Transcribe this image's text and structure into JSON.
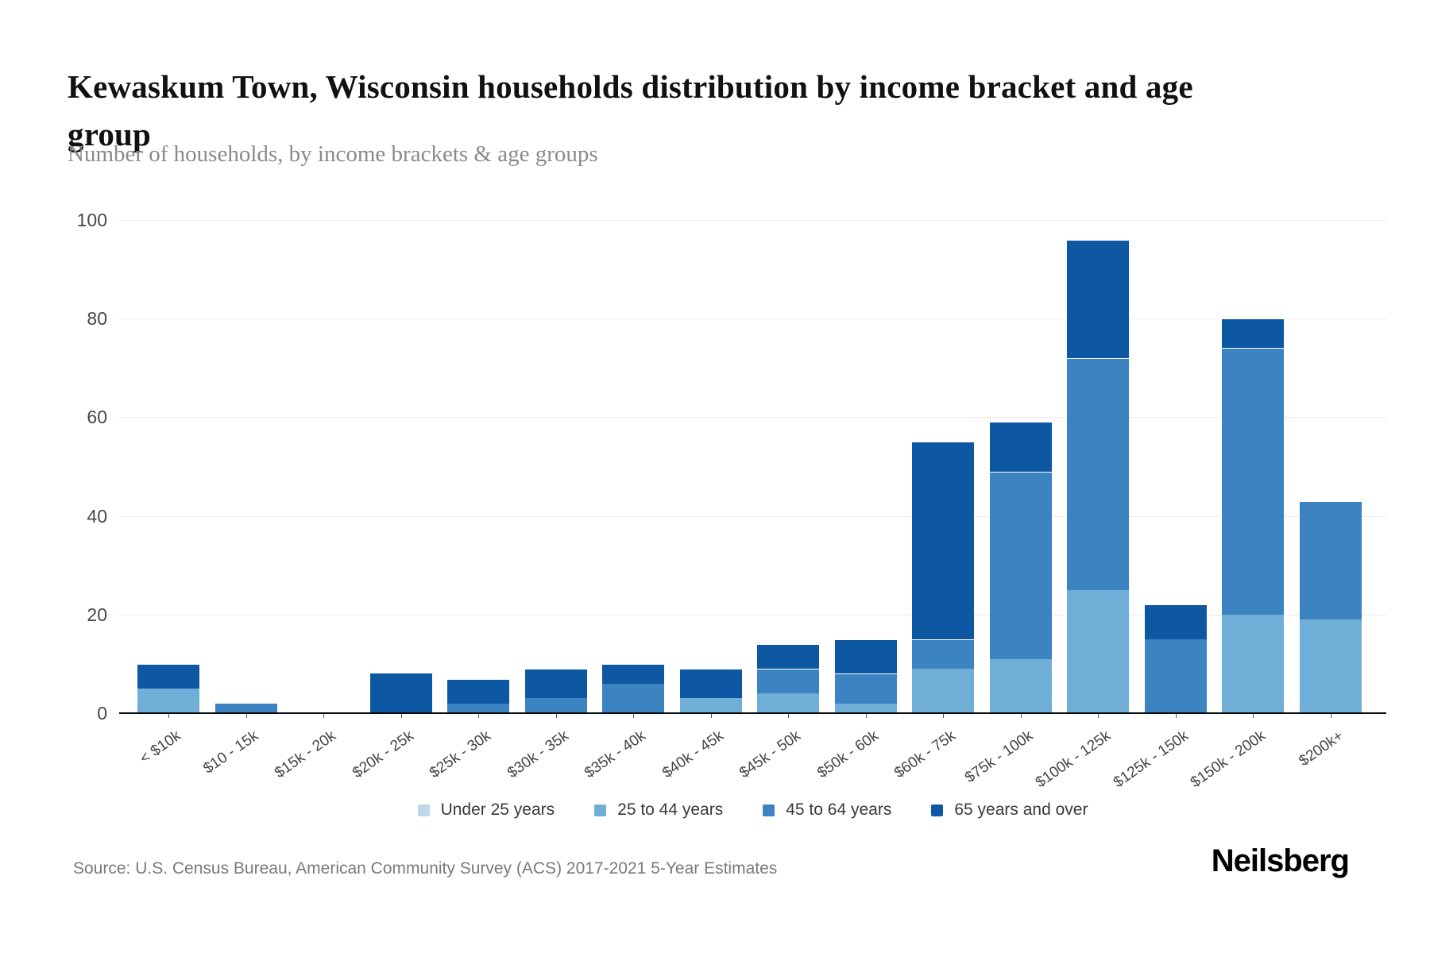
{
  "header": {
    "title": "Kewaskum Town, Wisconsin households distribution by income bracket and age group",
    "subtitle": "Number of households, by income brackets & age groups"
  },
  "chart_data": {
    "type": "bar",
    "stacked": true,
    "title": "Kewaskum Town, Wisconsin households distribution by income bracket and age group",
    "subtitle": "Number of households, by income brackets & age groups",
    "xlabel": "",
    "ylabel": "",
    "ylim": [
      0,
      100
    ],
    "yticks": [
      0,
      20,
      40,
      60,
      80,
      100
    ],
    "grid": true,
    "legend_position": "bottom",
    "categories": [
      "< $10k",
      "$10 - 15k",
      "$15k - 20k",
      "$20k - 25k",
      "$25k - 30k",
      "$30k - 35k",
      "$35k - 40k",
      "$40k - 45k",
      "$45k - 50k",
      "$50k - 60k",
      "$60k - 75k",
      "$75k - 100k",
      "$100k - 125k",
      "$125k - 150k",
      "$150k - 200k",
      "$200k+"
    ],
    "series": [
      {
        "name": "Under 25 years",
        "color": "#bdd8ea",
        "values": [
          0,
          0,
          0,
          0,
          0,
          0,
          0,
          0,
          0,
          0,
          0,
          0,
          0,
          0,
          0,
          0
        ]
      },
      {
        "name": "25 to 44 years",
        "color": "#6fafd7",
        "values": [
          5,
          0,
          0,
          0,
          0,
          0,
          0,
          3,
          4,
          2,
          9,
          11,
          25,
          0,
          20,
          19
        ]
      },
      {
        "name": "45 to 64 years",
        "color": "#3b83c1",
        "values": [
          0,
          2,
          0,
          0,
          2,
          3,
          6,
          0,
          5,
          6,
          6,
          38,
          47,
          15,
          54,
          24
        ]
      },
      {
        "name": "65 years and over",
        "color": "#0d57a3",
        "values": [
          5,
          0,
          0,
          8,
          5,
          6,
          4,
          6,
          5,
          7,
          40,
          10,
          24,
          7,
          6,
          0
        ]
      }
    ],
    "totals": [
      10,
      2,
      0,
      8,
      7,
      9,
      10,
      9,
      14,
      15,
      55,
      59,
      96,
      22,
      80,
      43
    ]
  },
  "footer": {
    "source": "Source: U.S. Census Bureau, American Community Survey (ACS) 2017-2021 5-Year Estimates",
    "brand": "Neilsberg"
  }
}
